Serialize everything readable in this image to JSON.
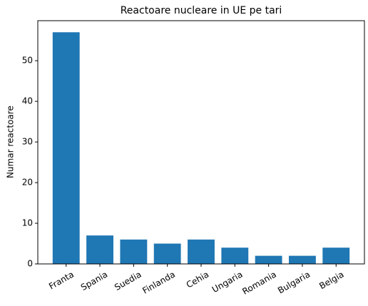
{
  "chart_data": {
    "type": "bar",
    "title": "Reactoare nucleare in UE pe tari",
    "ylabel": "Numar reactoare",
    "categories": [
      "Franta",
      "Spania",
      "Suedia",
      "Finlanda",
      "Cehia",
      "Ungaria",
      "Romania",
      "Bulgaria",
      "Belgia"
    ],
    "values": [
      57,
      7,
      6,
      5,
      6,
      4,
      2,
      2,
      4
    ],
    "color": "#1f77b4",
    "ylim": [
      0,
      59.85
    ],
    "yticks": [
      0,
      10,
      20,
      30,
      40,
      50
    ]
  }
}
